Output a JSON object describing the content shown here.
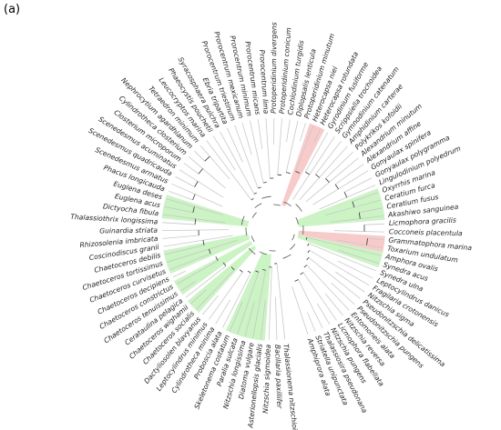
{
  "panel_label": "(a)",
  "leaves": [
    "Thalassionema nitzschioides",
    "Bacillaria paxillifer",
    "Nitzschia sigmoidea",
    "Asterionellopsis glacialis",
    "Diatoma vulgare",
    "Nitzschia longissima",
    "Paralia sulcata",
    "Skeletonema costatum",
    "Proboscia alata",
    "Cylindrotheca minima",
    "Leptocylindrus minimus",
    "Dactyliosolen blavyanus",
    "Chaetoceros socialis",
    "Chaetoceros wighamii",
    "Cerataulina pelagica",
    "Chaetoceros tenuissimus",
    "Chaetoceros constrictus",
    "Chaetoceros decipiens",
    "Chaetoceros curvisetus",
    "Chaetoceros tortissimus",
    "Chaetoceros debilis",
    "Coscinodiscus granii",
    "Rhizosolenia imbricata",
    "Guinardia striata",
    "Thalassiothrix longissima",
    "Dictyocha fibula",
    "Euglena acus",
    "Euglena deses",
    "Phacus longicauda",
    "Scenedesmus armatus",
    "Scenedesmus quadricauda",
    "Scenedesmus acuminatus",
    "Closterium microporum",
    "Cylindrotheca closterium",
    "Nephrocytium agardhianum",
    "Tetraedron minimum",
    "Leucocryptos marina",
    "Phaeocystis pouchetii",
    "Syracosphaera pulchra",
    "Ebria tripartita",
    "Prorocentrum triestinum",
    "Prorocentrum mexicanum",
    "Prorocentrum minimum",
    "Prorocentrum micans",
    "Prorocentrum lima",
    "Protoperidinium divergens",
    "Protoperidinium conicum",
    "Cochlodinium turgidis",
    "Diplopsalis lenticula",
    "Protoperidinium minutum",
    "Heterocapsa niei",
    "Heterocapsa rotundata",
    "Gyrodinium fusiforme",
    "Scrippsiella trochoidea",
    "Gymnodinium catenatum",
    "Amphidinium carterae",
    "Polykrikos kofoidii",
    "Alexandrium minutum",
    "Alexandrium affine",
    "Gonyaulax spinifera",
    "Gonyaulax polygramma",
    "Lingulodinium polyedrum",
    "Oxyrrhis marina",
    "Ceratium furca",
    "Ceratium fusus",
    "Akashiwo sanguinea",
    "Licmophora gracilis",
    "Cocconeis placentula",
    "Grammatophora marina",
    "Toxarium undulatum",
    "Amphora ovalis",
    "Synedra acus",
    "Synedra ulna",
    "Leptocylindrus danicus",
    "Fragilaria crotonensis",
    "Nitzschia sigma",
    "Pseudonitzschia delicatissima",
    "Pseudonitzschia pungens",
    "Entomoneis alata",
    "Nitzschia reversa",
    "Licmophora flabellata",
    "Nitzschia pungens",
    "Thalassiosira pseudonana",
    "Striatella unipunctata",
    "Amphiprora alata"
  ]
}
